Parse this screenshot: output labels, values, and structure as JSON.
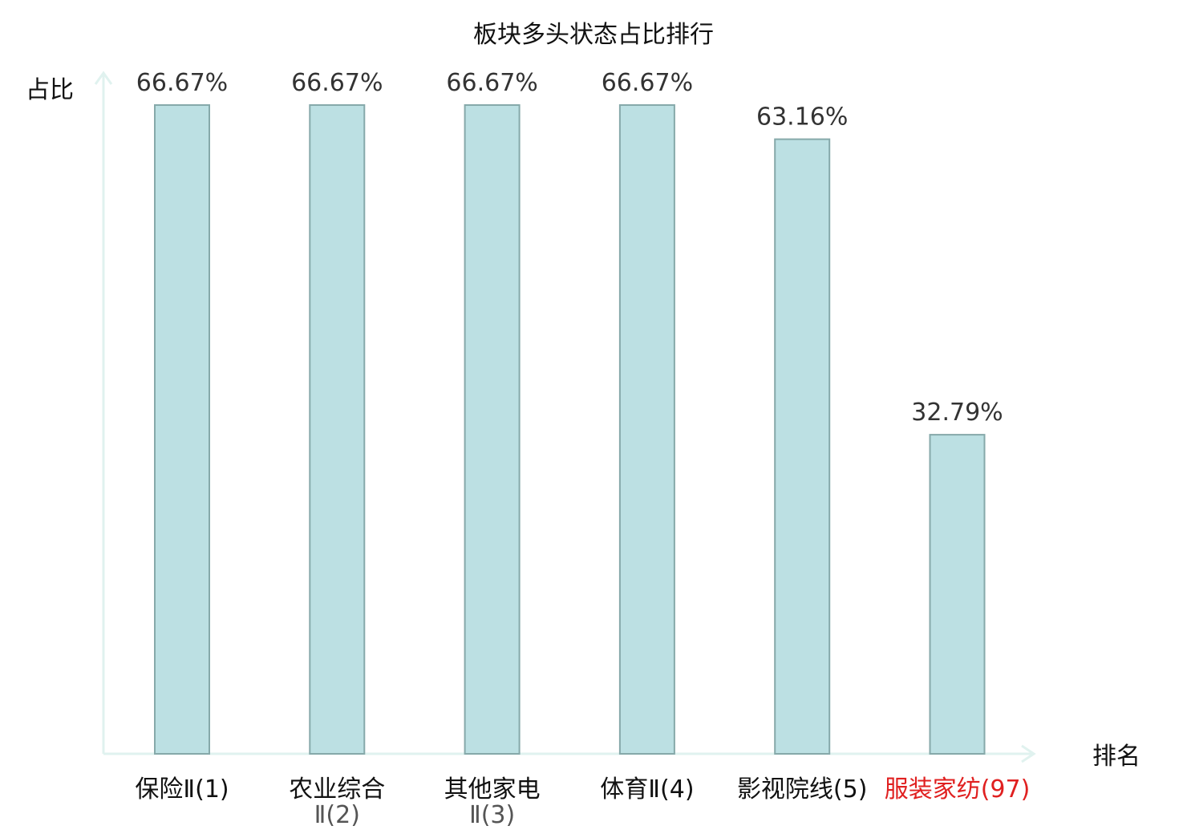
{
  "chart_data": {
    "type": "bar",
    "title": "板块多头状态占比排行",
    "ylabel": "占比",
    "xlabel": "排名",
    "categories": [
      {
        "lines": [
          "保险Ⅱ(1)"
        ],
        "highlight": false
      },
      {
        "lines": [
          "农业综合",
          "Ⅱ(2)"
        ],
        "highlight": false
      },
      {
        "lines": [
          "其他家电",
          "Ⅱ(3)"
        ],
        "highlight": false
      },
      {
        "lines": [
          "体育Ⅱ(4)"
        ],
        "highlight": false
      },
      {
        "lines": [
          "影视院线(5)"
        ],
        "highlight": false
      },
      {
        "lines": [
          "服装家纺(97)"
        ],
        "highlight": true
      }
    ],
    "values": [
      66.67,
      66.67,
      66.67,
      66.67,
      63.16,
      32.79
    ],
    "value_labels": [
      "66.67%",
      "66.67%",
      "66.67%",
      "66.67%",
      "63.16%",
      "32.79%"
    ],
    "ylim": [
      0,
      66.67
    ],
    "grid": false,
    "colors": {
      "bar_fill": "#bce0e3",
      "bar_stroke": "#86a9aa",
      "axis": "#e0f2ef",
      "highlight_text": "#e02020"
    }
  }
}
